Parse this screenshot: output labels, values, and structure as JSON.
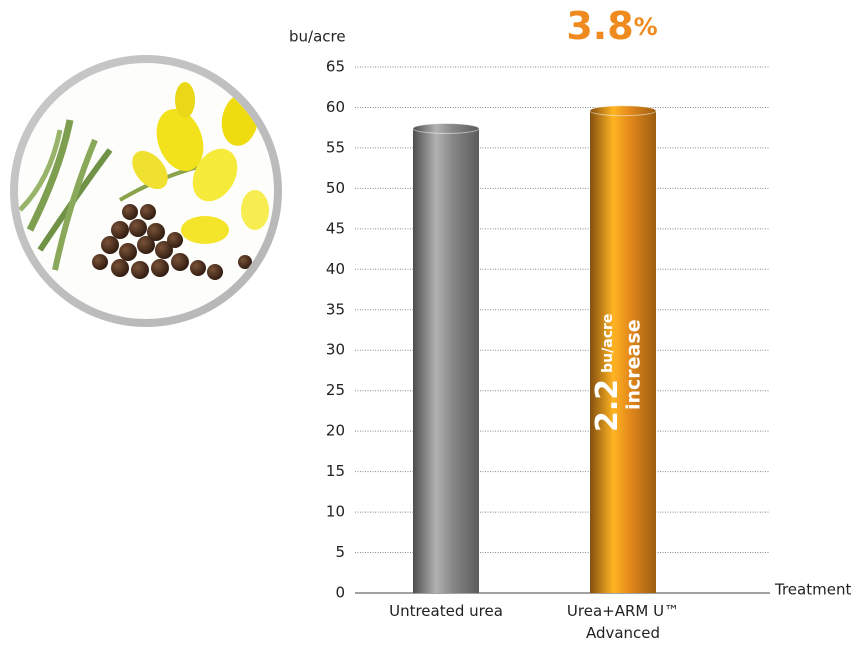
{
  "chart_data": {
    "type": "bar",
    "y_axis_label": "bu/acre",
    "x_axis_label": "Treatment",
    "categories": [
      "Untreated urea",
      "Urea+ARM U™ Advanced"
    ],
    "values": [
      57.4,
      59.6
    ],
    "colors": [
      "#8e8e8e",
      "#f0901c"
    ],
    "ylim": [
      0,
      65
    ],
    "yticks": [
      0,
      5,
      10,
      15,
      20,
      25,
      30,
      35,
      40,
      45,
      50,
      55,
      60,
      65
    ],
    "grid": true,
    "headline": {
      "number": "3.8",
      "unit": "%"
    },
    "bar_annotation": {
      "number": "2.2",
      "unit": "bu/acre",
      "text": "increase"
    }
  }
}
